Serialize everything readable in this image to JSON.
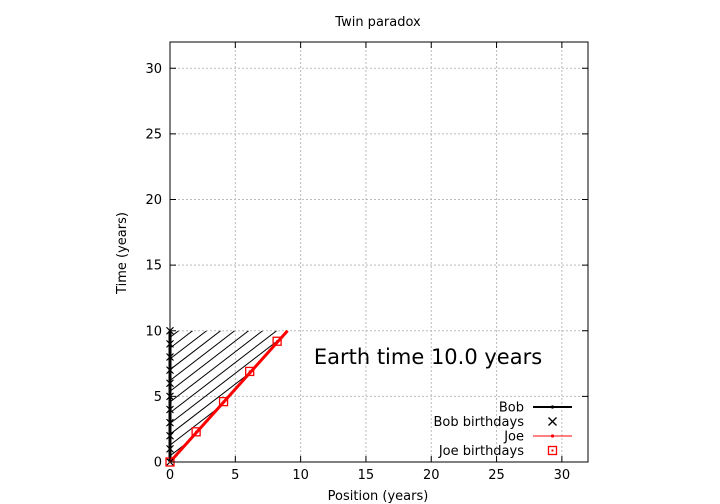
{
  "chart_data": {
    "type": "line",
    "title": "Twin paradox",
    "xlabel": "Position (years)",
    "ylabel": "Time (years)",
    "xlim": [
      0,
      32
    ],
    "ylim": [
      0,
      32
    ],
    "xticks": [
      0,
      5,
      10,
      15,
      20,
      25,
      30
    ],
    "yticks": [
      0,
      5,
      10,
      15,
      20,
      25,
      30
    ],
    "grid": true,
    "legend_position": "bottom-right",
    "annotation": "Earth time 10.0 years",
    "series": [
      {
        "name": "Bob",
        "style": "line",
        "color": "#000000",
        "x": [
          0,
          0
        ],
        "y": [
          0,
          10
        ]
      },
      {
        "name": "Bob birthdays",
        "style": "x-marker",
        "color": "#000000",
        "x": [
          0,
          0,
          0,
          0,
          0,
          0,
          0,
          0,
          0,
          0,
          0
        ],
        "y": [
          0,
          1,
          2,
          3,
          4,
          5,
          6,
          7,
          8,
          9,
          10
        ]
      },
      {
        "name": "Joe",
        "style": "line",
        "color": "#ff0000",
        "x": [
          0,
          9
        ],
        "y": [
          0,
          10
        ]
      },
      {
        "name": "Joe birthdays",
        "style": "square-marker",
        "color": "#ff0000",
        "x": [
          0,
          2,
          4.1,
          6.1,
          8.2
        ],
        "y": [
          0,
          2.3,
          4.6,
          6.9,
          9.2
        ]
      }
    ],
    "hatch": {
      "description_region": "between Bob and Joe worldlines up to t=10",
      "color": "#000000"
    }
  }
}
